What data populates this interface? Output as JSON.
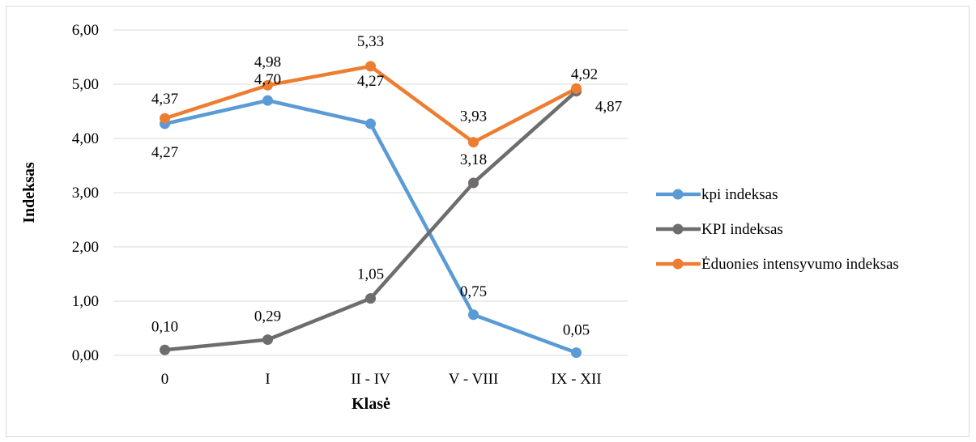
{
  "chart_data": {
    "type": "line",
    "categories": [
      "0",
      "I",
      "II - IV",
      "V - VIII",
      "IX - XII"
    ],
    "xlabel": "Klasė",
    "ylabel": "Indeksas",
    "ylim": [
      0,
      6
    ],
    "ytick_labels": [
      "0,00",
      "1,00",
      "2,00",
      "3,00",
      "4,00",
      "5,00",
      "6,00"
    ],
    "grid": true,
    "legend_position": "right",
    "series": [
      {
        "name": "kpi indeksas",
        "color": "#5b9bd5",
        "values": [
          4.27,
          4.7,
          4.27,
          0.75,
          0.05
        ],
        "labels": [
          "4,27",
          "4,70",
          "4,27",
          "0,75",
          "0,05"
        ]
      },
      {
        "name": "KPI indeksas",
        "color": "#6e6c6c",
        "values": [
          0.1,
          0.29,
          1.05,
          3.18,
          4.87
        ],
        "labels": [
          "0,10",
          "0,29",
          "1,05",
          "3,18",
          "4,87"
        ]
      },
      {
        "name": "Ėduonies intensyvumo indeksas",
        "color": "#ed7d31",
        "values": [
          4.37,
          4.98,
          5.33,
          3.93,
          4.92
        ],
        "labels": [
          "4,37",
          "4,98",
          "5,33",
          "3,93",
          "4,92"
        ]
      }
    ]
  }
}
